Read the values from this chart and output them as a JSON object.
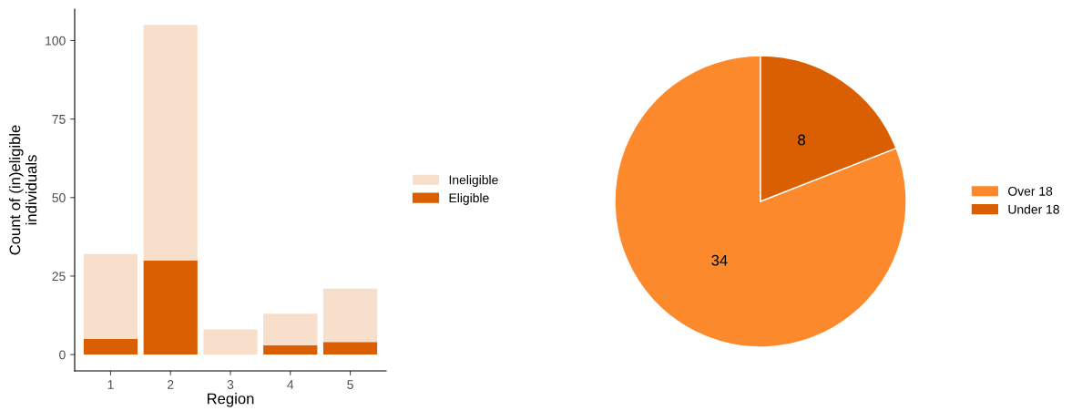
{
  "chart_data": [
    {
      "type": "bar",
      "stacked": true,
      "xlabel": "Region",
      "ylabel": "Count of (in)eligible\nindividuals",
      "categories": [
        "1",
        "2",
        "3",
        "4",
        "5"
      ],
      "ylim": [
        -5.2,
        110
      ],
      "yticks": [
        0,
        25,
        50,
        75,
        100
      ],
      "grid": false,
      "legend": "right",
      "series": [
        {
          "name": "Eligible",
          "color": "#d95f02",
          "values": [
            5,
            30,
            0,
            3,
            4
          ]
        },
        {
          "name": "Ineligible",
          "color": "#f8dfcc",
          "values": [
            27,
            75,
            8,
            10,
            17
          ]
        }
      ]
    },
    {
      "type": "pie",
      "categories": [
        "Over 18",
        "Under 18"
      ],
      "values": [
        34,
        8
      ],
      "colors": [
        "#fd892d",
        "#d95f02"
      ],
      "data_labels": true,
      "legend": "right"
    }
  ]
}
